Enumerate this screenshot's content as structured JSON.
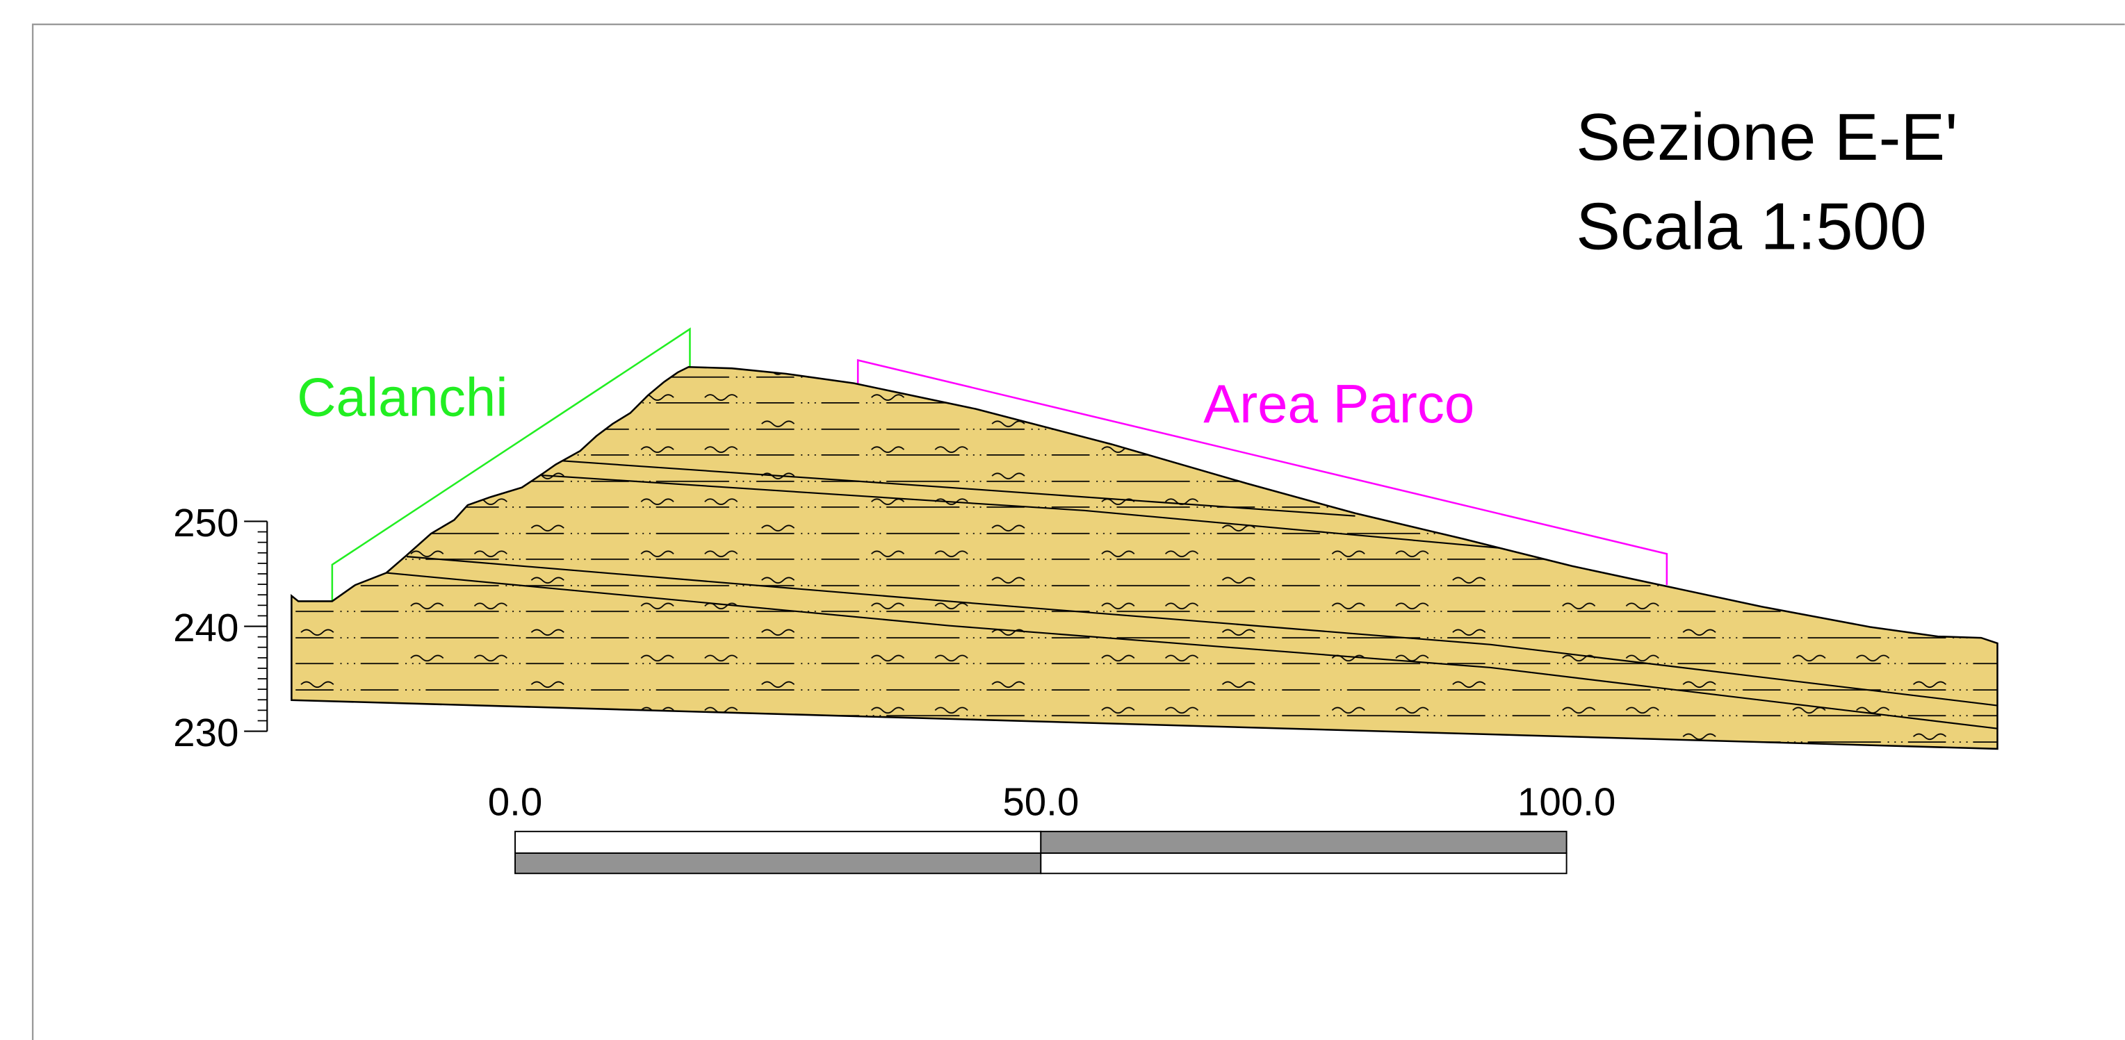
{
  "title": {
    "line1": "Sezione E-E'",
    "line2": "Scala 1:500"
  },
  "zones": [
    {
      "label": "Calanchi",
      "color": "#22ee22"
    },
    {
      "label": "Area Parco",
      "color": "#ff00ff"
    }
  ],
  "elevation_axis": {
    "ticks": [
      {
        "value": 250,
        "label": "250"
      },
      {
        "value": 240,
        "label": "240"
      },
      {
        "value": 230,
        "label": "230"
      }
    ]
  },
  "scale_bar": {
    "labels": [
      {
        "value": 0,
        "label": "0.0"
      },
      {
        "value": 50,
        "label": "50.0"
      },
      {
        "value": 100,
        "label": "100.0"
      }
    ],
    "dark_color": "#939393",
    "light_color": "#ffffff"
  },
  "colors": {
    "terrain_fill": "#ecd27a",
    "line": "#000000",
    "frame": "#999999"
  }
}
